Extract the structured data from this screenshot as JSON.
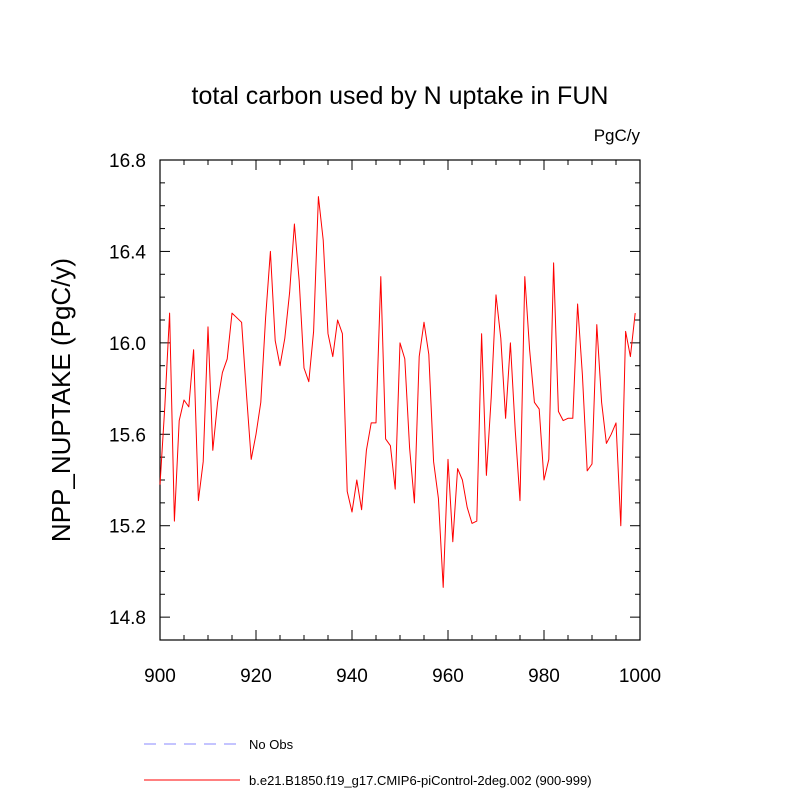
{
  "chart_data": {
    "type": "line",
    "title": "total carbon used by N uptake in FUN",
    "units": "PgC/y",
    "xlabel": "",
    "ylabel": "NPP_NUPTAKE  (PgC/y)",
    "xlim": [
      900,
      1000
    ],
    "ylim": [
      14.7,
      16.8
    ],
    "xticks": [
      900,
      920,
      940,
      960,
      980,
      1000
    ],
    "xtick_labels": [
      "900",
      "920",
      "940",
      "960",
      "980",
      "1000"
    ],
    "yticks": [
      14.8,
      15.2,
      15.6,
      16.0,
      16.4,
      16.8
    ],
    "ytick_labels": [
      "14.8",
      "15.2",
      "15.6",
      "16.0",
      "16.4",
      "16.8"
    ],
    "series": [
      {
        "name": "b.e21.B1850.f19_g17.CMIP6-piControl-2deg.002 (900-999)",
        "color": "#ff0000",
        "style": "solid",
        "x_start": 900,
        "values": [
          15.38,
          15.72,
          16.13,
          15.22,
          15.66,
          15.75,
          15.72,
          15.97,
          15.31,
          15.48,
          16.07,
          15.53,
          15.74,
          15.87,
          15.93,
          16.13,
          16.11,
          16.09,
          15.78,
          15.49,
          15.6,
          15.74,
          16.11,
          16.4,
          16.01,
          15.9,
          16.02,
          16.22,
          16.52,
          16.27,
          15.89,
          15.83,
          16.05,
          16.64,
          16.45,
          16.04,
          15.94,
          16.1,
          16.04,
          15.35,
          15.26,
          15.4,
          15.27,
          15.53,
          15.65,
          15.65,
          16.29,
          15.58,
          15.55,
          15.36,
          16.0,
          15.93,
          15.54,
          15.3,
          15.94,
          16.09,
          15.95,
          15.48,
          15.32,
          14.93,
          15.49,
          15.13,
          15.45,
          15.4,
          15.28,
          15.21,
          15.22,
          16.04,
          15.42,
          15.76,
          16.21,
          16.02,
          15.67,
          16.0,
          15.62,
          15.31,
          16.29,
          15.97,
          15.74,
          15.71,
          15.4,
          15.49,
          16.35,
          15.7,
          15.66,
          15.67,
          15.67,
          16.17,
          15.86,
          15.44,
          15.47,
          16.08,
          15.74,
          15.56,
          15.6,
          15.65,
          15.2,
          16.05,
          15.94,
          16.13
        ]
      },
      {
        "name": "No Obs",
        "color": "#8888ff",
        "style": "dashed",
        "values": []
      }
    ],
    "legend_position": "bottom-left"
  }
}
